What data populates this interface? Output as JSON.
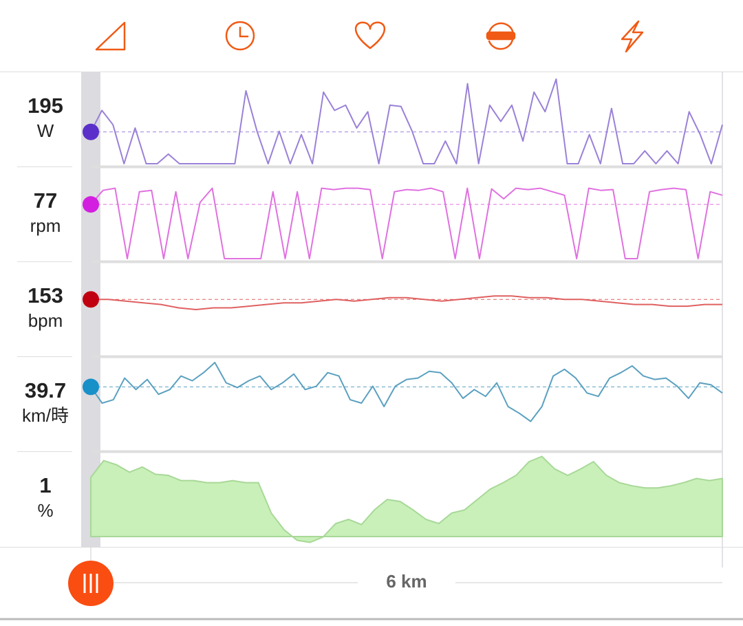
{
  "panels": [
    {
      "value": "195",
      "unit": "W",
      "dot_color": "#5b2fc9",
      "color": "#9a80d8",
      "fill": null,
      "ylim": [
        0,
        540
      ],
      "trace": [
        195,
        327,
        239,
        0,
        219,
        0,
        0,
        59,
        0,
        0,
        0,
        0,
        0,
        0,
        447,
        199,
        0,
        199,
        0,
        179,
        0,
        439,
        327,
        359,
        219,
        319,
        0,
        359,
        351,
        199,
        0,
        0,
        139,
        0,
        491,
        0,
        359,
        259,
        359,
        139,
        439,
        319,
        519,
        0,
        0,
        179,
        0,
        339,
        0,
        0,
        79,
        0,
        79,
        0,
        319,
        179,
        0,
        239
      ]
    },
    {
      "value": "77",
      "unit": "rpm",
      "dot_color": "#d21fe0",
      "color": "#e070e0",
      "fill": null,
      "ylim": [
        0,
        125
      ],
      "trace": [
        77,
        97,
        100,
        0,
        95,
        97,
        0,
        95,
        0,
        80,
        100,
        0,
        0,
        0,
        0,
        95,
        0,
        95,
        0,
        100,
        98,
        100,
        100,
        98,
        0,
        95,
        98,
        97,
        100,
        95,
        0,
        100,
        0,
        99,
        85,
        100,
        98,
        100,
        95,
        90,
        0,
        100,
        97,
        98,
        0,
        0,
        95,
        98,
        100,
        98,
        0,
        95,
        90
      ]
    },
    {
      "value": "153",
      "unit": "bpm",
      "dot_color": "#c00010",
      "color": "#e06060",
      "fill": null,
      "ylim": [
        121,
        173
      ],
      "trace": [
        153,
        153,
        152,
        151,
        150,
        148,
        147,
        148,
        148,
        149,
        150,
        151,
        151,
        152,
        153,
        152,
        153,
        154,
        154,
        153,
        152,
        153,
        154,
        155,
        155,
        154,
        154,
        153,
        153,
        152,
        151,
        150,
        150,
        149,
        149,
        150,
        150
      ]
    },
    {
      "value": "39.7",
      "unit": "km/時",
      "dot_color": "#1890c8",
      "color": "#5aa0c0",
      "fill": null,
      "ylim": [
        21.5,
        47.5
      ],
      "trace": [
        39.7,
        34.9,
        35.9,
        42.3,
        38.9,
        41.9,
        37.5,
        38.9,
        42.9,
        41.5,
        43.9,
        46.9,
        40.9,
        39.5,
        41.5,
        42.9,
        38.9,
        40.9,
        43.5,
        38.9,
        39.9,
        43.9,
        42.9,
        35.9,
        34.9,
        39.9,
        33.9,
        39.9,
        41.9,
        42.3,
        44.3,
        43.9,
        40.9,
        36.3,
        38.9,
        36.9,
        40.9,
        33.9,
        31.9,
        29.5,
        33.9,
        42.9,
        44.9,
        42.3,
        37.9,
        36.9,
        42.3,
        43.9,
        45.9,
        42.9,
        41.9,
        42.3,
        39.9,
        36.3,
        40.9,
        40.3,
        37.9
      ]
    },
    {
      "value": "1",
      "unit": "%",
      "dot_color": null,
      "color": "#a8d898",
      "fill": "#c8f0b8",
      "ylim": [
        -5.3,
        3.1
      ],
      "trace": [
        1,
        2.6,
        2.2,
        1.5,
        2.0,
        1.3,
        1.2,
        0.7,
        0.7,
        0.5,
        0.5,
        0.7,
        0.5,
        0.5,
        -2.4,
        -4.0,
        -5.0,
        -5.2,
        -4.7,
        -3.4,
        -3.0,
        -3.5,
        -2.1,
        -1.1,
        -1.3,
        -2.1,
        -3.0,
        -3.4,
        -2.4,
        -2.1,
        -1.1,
        -0.1,
        0.5,
        1.2,
        2.5,
        3.0,
        1.8,
        1.2,
        1.8,
        2.5,
        1.2,
        0.5,
        0.2,
        0.0,
        0.0,
        0.2,
        0.5,
        0.9,
        0.7,
        0.9
      ]
    }
  ],
  "distance_label": "6 km"
}
